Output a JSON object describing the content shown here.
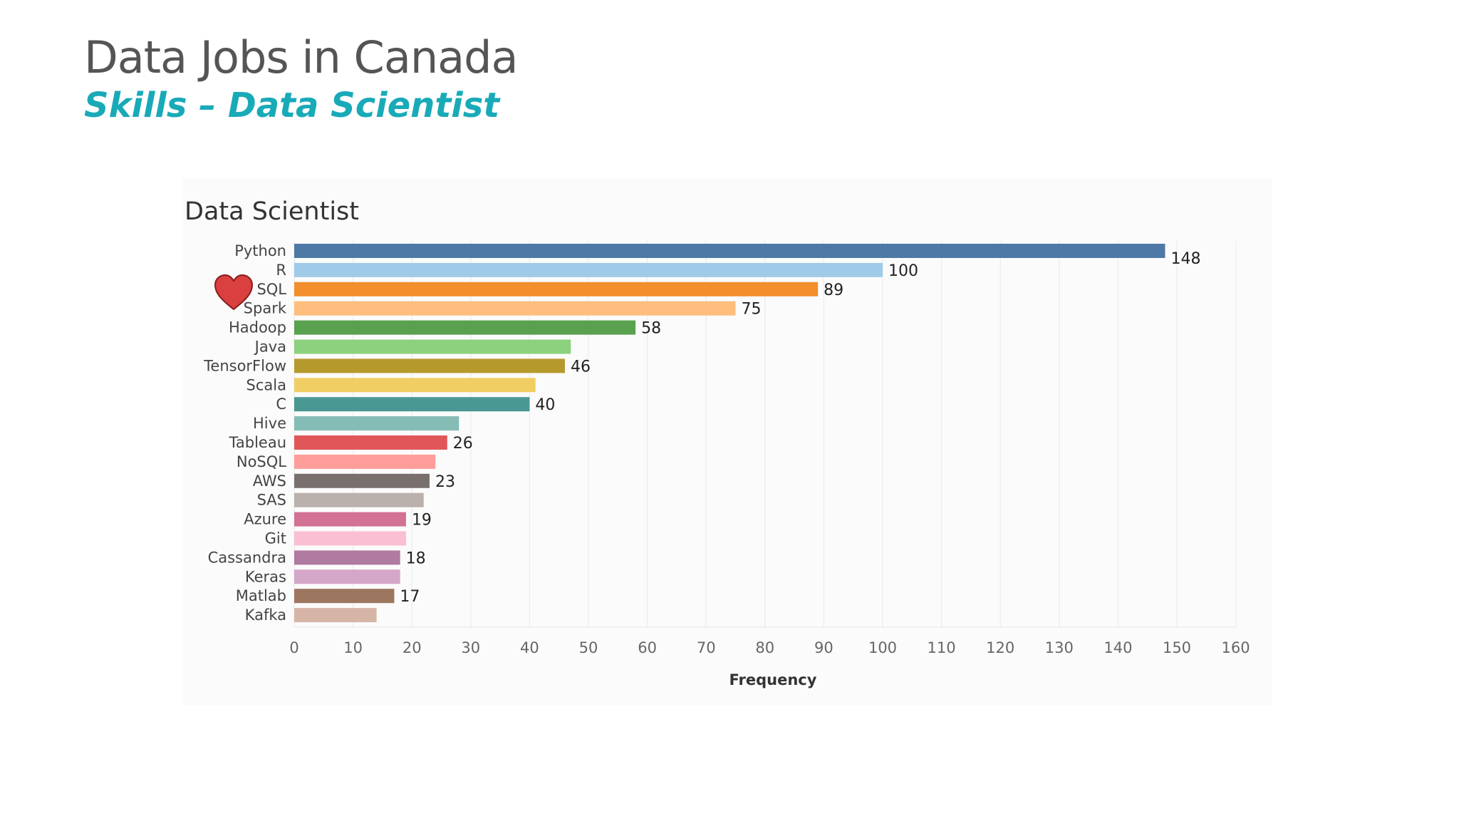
{
  "slide": {
    "title": "Data Jobs in Canada",
    "subtitle": "Skills – Data Scientist"
  },
  "decoration": {
    "icon": "heart-icon",
    "color": "#d9403f",
    "attached_to": "SQL"
  },
  "chart_data": {
    "type": "bar",
    "orientation": "horizontal",
    "title": "Data Scientist",
    "xlabel": "Frequency",
    "ylabel": "",
    "xlim": [
      0,
      160
    ],
    "xticks": [
      0,
      10,
      20,
      30,
      40,
      50,
      60,
      70,
      80,
      90,
      100,
      110,
      120,
      130,
      140,
      150,
      160
    ],
    "grid": true,
    "categories": [
      "Python",
      "R",
      "SQL",
      "Spark",
      "Hadoop",
      "Java",
      "TensorFlow",
      "Scala",
      "C",
      "Hive",
      "Tableau",
      "NoSQL",
      "AWS",
      "SAS",
      "Azure",
      "Git",
      "Cassandra",
      "Keras",
      "Matlab",
      "Kafka"
    ],
    "values": [
      148,
      100,
      89,
      75,
      58,
      47,
      46,
      41,
      40,
      28,
      26,
      24,
      23,
      22,
      19,
      19,
      18,
      18,
      17,
      14
    ],
    "value_labels": [
      "148",
      "100",
      "89",
      "75",
      "58",
      "",
      "46",
      "",
      "40",
      "",
      "26",
      "",
      "23",
      "",
      "19",
      "",
      "18",
      "",
      "17",
      ""
    ],
    "colors": [
      "#4e79a7",
      "#a0cbe8",
      "#f28e2b",
      "#ffbe7d",
      "#59a14f",
      "#8cd17d",
      "#b6992d",
      "#f1ce63",
      "#499894",
      "#86bcb6",
      "#e15759",
      "#ff9d9a",
      "#79706e",
      "#bab0ac",
      "#d37295",
      "#fabfd2",
      "#b07aa1",
      "#d4a6c8",
      "#9d7660",
      "#d7b5a6"
    ]
  }
}
